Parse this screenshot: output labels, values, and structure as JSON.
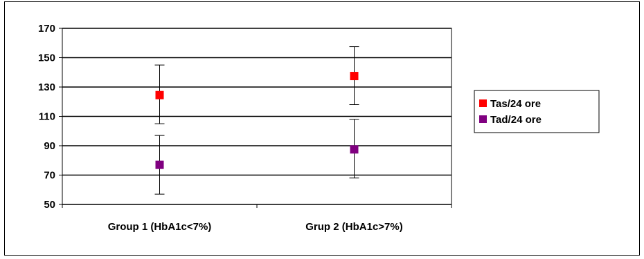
{
  "chart_data": {
    "type": "scatter",
    "title": "",
    "xlabel": "",
    "ylabel": "",
    "categories": [
      "Group 1 (HbA1c<7%)",
      "Grup 2 (HbA1c>7%)"
    ],
    "ylim": [
      50,
      170
    ],
    "yticks": [
      50,
      70,
      90,
      110,
      130,
      150,
      170
    ],
    "grid": true,
    "legend_position": "right",
    "series": [
      {
        "name": "Tas/24 ore",
        "color": "#ff0000",
        "values": [
          124.5,
          137.5
        ],
        "error_low": [
          105,
          118
        ],
        "error_high": [
          145,
          157.5
        ]
      },
      {
        "name": "Tad/24 ore",
        "color": "#800080",
        "values": [
          77,
          87.5
        ],
        "error_low": [
          57,
          68
        ],
        "error_high": [
          97,
          108
        ]
      }
    ]
  }
}
